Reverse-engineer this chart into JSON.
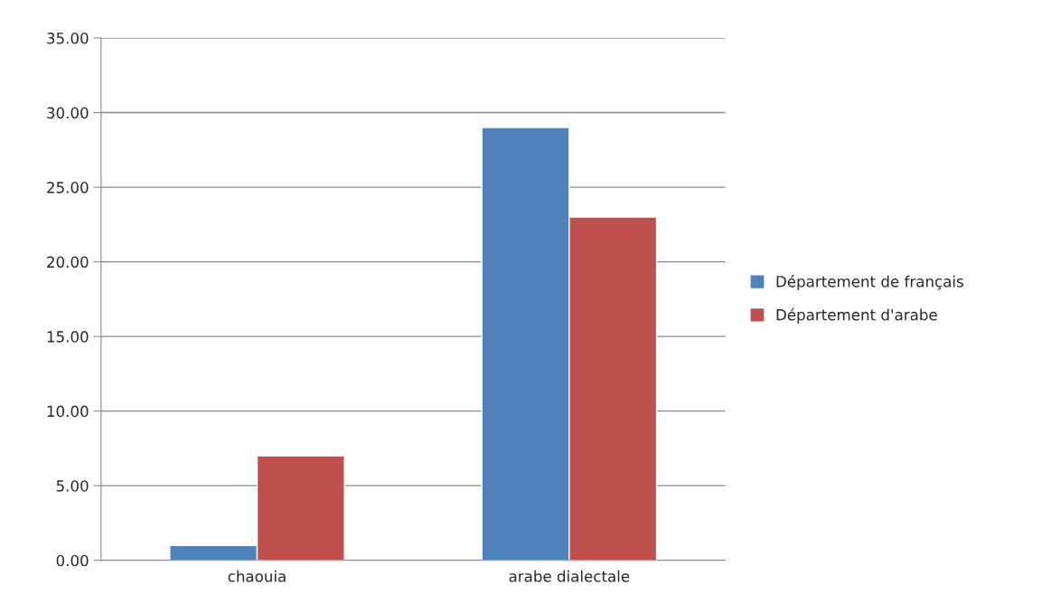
{
  "chart_data": {
    "type": "bar",
    "categories": [
      "chaouia",
      "arabe dialectale"
    ],
    "series": [
      {
        "name": "Département de français",
        "color": "#4f81bd",
        "values": [
          1,
          29
        ]
      },
      {
        "name": "Département d'arabe",
        "color": "#c0504d",
        "values": [
          7,
          23
        ]
      }
    ],
    "ylim": [
      0,
      35
    ],
    "yticks": [
      {
        "value": 0,
        "label": "0.00"
      },
      {
        "value": 5,
        "label": "5.00"
      },
      {
        "value": 10,
        "label": "10.00"
      },
      {
        "value": 15,
        "label": "15.00"
      },
      {
        "value": 20,
        "label": "20.00"
      },
      {
        "value": 25,
        "label": "25.00"
      },
      {
        "value": 30,
        "label": "30.00"
      },
      {
        "value": 35,
        "label": "35.00"
      }
    ],
    "grid": "y",
    "legend": "right"
  }
}
